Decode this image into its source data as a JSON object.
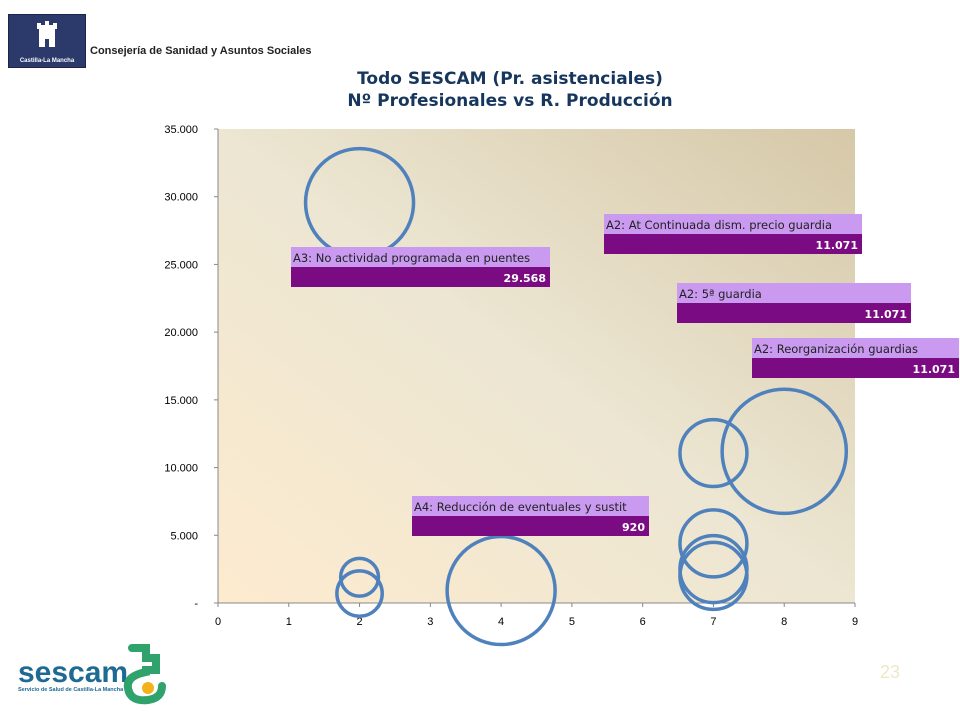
{
  "header": {
    "logo_label": "Castilla-La Mancha",
    "consejeria": "Consejería de Sanidad y Asuntos Sociales"
  },
  "footer": {
    "page_number": "23",
    "logo_word": "sescam",
    "logo_subtitle": "Servicio de Salud de Castilla-La Mancha"
  },
  "colors": {
    "bubble_stroke": "#4f81bd",
    "label_top": "#c99af0",
    "label_bottom": "#7a0b82"
  },
  "chart_data": {
    "type": "scatter",
    "title": "Todo SESCAM (Pr. asistenciales)",
    "subtitle": "Nº Profesionales vs R. Producción",
    "xlim": [
      0,
      9
    ],
    "ylim": [
      0,
      35000
    ],
    "x_ticks": [
      "0",
      "1",
      "2",
      "3",
      "4",
      "5",
      "6",
      "7",
      "8",
      "9"
    ],
    "y_ticks": [
      "-",
      "5.000",
      "10.000",
      "15.000",
      "20.000",
      "25.000",
      "30.000",
      "35.000"
    ],
    "y_tick_values": [
      0,
      5000,
      10000,
      15000,
      20000,
      25000,
      30000,
      35000
    ],
    "grid": false,
    "bubbles": [
      {
        "x": 2,
        "y": 29568,
        "size": 1.0
      },
      {
        "x": 2,
        "y": 1900,
        "size": 0.35
      },
      {
        "x": 2,
        "y": 700,
        "size": 0.42
      },
      {
        "x": 4,
        "y": 920,
        "size": 1.0
      },
      {
        "x": 7,
        "y": 11071,
        "size": 0.62
      },
      {
        "x": 7,
        "y": 4400,
        "size": 0.62
      },
      {
        "x": 7,
        "y": 2500,
        "size": 0.62
      },
      {
        "x": 7,
        "y": 2000,
        "size": 0.62
      },
      {
        "x": 8,
        "y": 11200,
        "size": 1.15
      }
    ],
    "annotations": [
      {
        "label": "A3: No actividad programada en puentes",
        "value": "29.568"
      },
      {
        "label": "A4: Reducción de eventuales y sustit",
        "value": "920"
      },
      {
        "label": "A2: At Continuada dism. precio guardia",
        "value": "11.071"
      },
      {
        "label": "A2: 5ª guardia",
        "value": "11.071"
      },
      {
        "label": "A2: Reorganización guardias",
        "value": "11.071"
      }
    ]
  }
}
